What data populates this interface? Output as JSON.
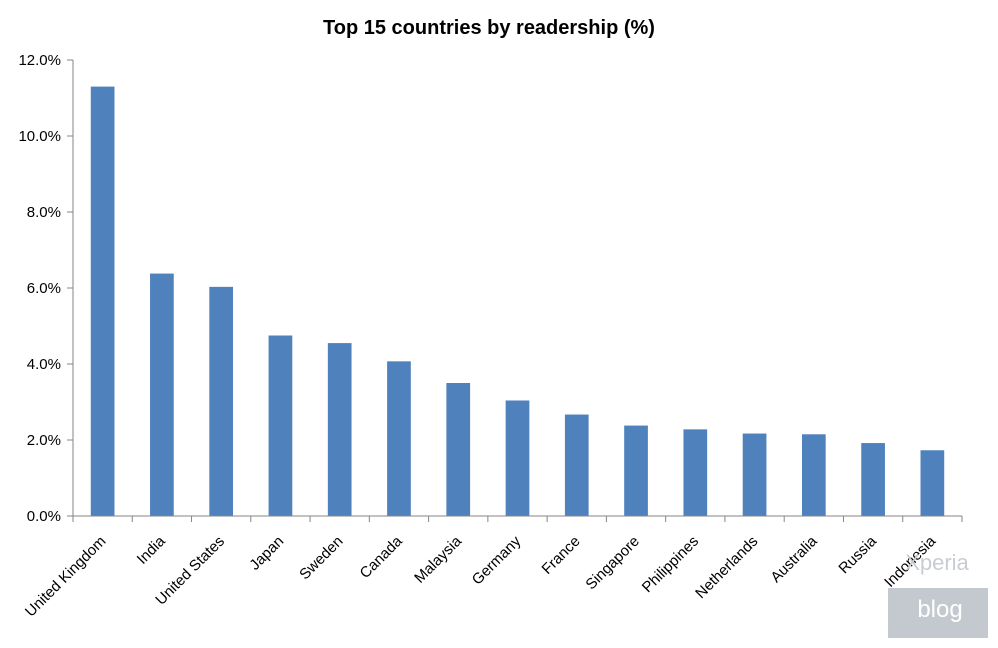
{
  "chart_data": {
    "type": "bar",
    "title": "Top 15 countries by readership (%)",
    "xlabel": "",
    "ylabel": "",
    "ylim": [
      0,
      12
    ],
    "yticks": [
      "0.0%",
      "2.0%",
      "4.0%",
      "6.0%",
      "8.0%",
      "10.0%",
      "12.0%"
    ],
    "grid": false,
    "legend": "none",
    "categories": [
      "United Kingdom",
      "India",
      "United States",
      "Japan",
      "Sweden",
      "Canada",
      "Malaysia",
      "Germany",
      "France",
      "Singapore",
      "Philippines",
      "Netherlands",
      "Australia",
      "Russia",
      "Indonesia"
    ],
    "values": [
      11.3,
      6.38,
      6.03,
      4.75,
      4.55,
      4.07,
      3.5,
      3.04,
      2.67,
      2.38,
      2.28,
      2.17,
      2.15,
      1.92,
      1.73
    ],
    "bar_color": "#4f81bd",
    "axis_color": "#868686"
  },
  "watermark": {
    "top": "Xperia",
    "bottom": "blog"
  }
}
